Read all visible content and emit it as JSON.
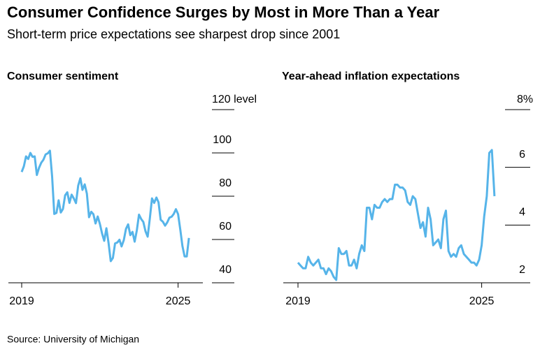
{
  "title": "Consumer Confidence Surges by Most in More Than a Year",
  "subtitle": "Short-term price expectations see sharpest drop since 2001",
  "source": "Source: University of Michigan",
  "chart_data": [
    {
      "type": "line",
      "title": "Consumer sentiment",
      "x": [
        2019.0,
        2019.083,
        2019.167,
        2019.25,
        2019.333,
        2019.417,
        2019.5,
        2019.583,
        2019.667,
        2019.75,
        2019.833,
        2019.917,
        2020.0,
        2020.083,
        2020.167,
        2020.25,
        2020.333,
        2020.417,
        2020.5,
        2020.583,
        2020.667,
        2020.75,
        2020.833,
        2020.917,
        2021.0,
        2021.083,
        2021.167,
        2021.25,
        2021.333,
        2021.417,
        2021.5,
        2021.583,
        2021.667,
        2021.75,
        2021.833,
        2021.917,
        2022.0,
        2022.083,
        2022.167,
        2022.25,
        2022.333,
        2022.417,
        2022.5,
        2022.583,
        2022.667,
        2022.75,
        2022.833,
        2022.917,
        2023.0,
        2023.083,
        2023.167,
        2023.25,
        2023.333,
        2023.417,
        2023.5,
        2023.583,
        2023.667,
        2023.75,
        2023.833,
        2023.917,
        2024.0,
        2024.083,
        2024.167,
        2024.25,
        2024.333,
        2024.417,
        2024.5,
        2024.583,
        2024.667,
        2024.75,
        2024.833,
        2024.917,
        2025.0,
        2025.083,
        2025.167,
        2025.25,
        2025.333,
        2025.417
      ],
      "series": [
        {
          "name": "Consumer sentiment",
          "color": "#56b4e9",
          "values": [
            91.2,
            93.8,
            98.4,
            97.2,
            100.0,
            98.2,
            98.4,
            89.8,
            93.2,
            95.5,
            96.8,
            99.3,
            99.8,
            101.0,
            89.1,
            71.8,
            72.3,
            78.1,
            72.5,
            74.1,
            80.4,
            81.8,
            76.9,
            80.7,
            79.0,
            76.8,
            84.9,
            88.3,
            82.9,
            85.5,
            81.2,
            70.3,
            72.8,
            71.7,
            67.4,
            70.6,
            67.2,
            62.8,
            59.4,
            65.2,
            58.4,
            50.0,
            51.5,
            58.2,
            58.6,
            59.9,
            56.8,
            59.7,
            64.9,
            67.0,
            62.0,
            63.5,
            59.0,
            64.2,
            71.5,
            69.5,
            68.1,
            63.8,
            61.3,
            69.7,
            79.0,
            76.9,
            79.4,
            77.2,
            69.1,
            68.2,
            66.4,
            67.9,
            70.1,
            70.5,
            71.8,
            74.0,
            71.7,
            64.7,
            57.0,
            52.2,
            52.2,
            60.7
          ]
        }
      ],
      "xlim": [
        2018.49,
        2025.95
      ],
      "xticks": [
        2019,
        2025
      ],
      "ylim": [
        40,
        120
      ],
      "yticks": [
        {
          "value": 120,
          "label": "120 level"
        },
        100,
        80,
        60,
        40
      ]
    },
    {
      "type": "line",
      "title": "Year-ahead inflation expectations",
      "x": [
        2019.0,
        2019.083,
        2019.167,
        2019.25,
        2019.333,
        2019.417,
        2019.5,
        2019.583,
        2019.667,
        2019.75,
        2019.833,
        2019.917,
        2020.0,
        2020.083,
        2020.167,
        2020.25,
        2020.333,
        2020.417,
        2020.5,
        2020.583,
        2020.667,
        2020.75,
        2020.833,
        2020.917,
        2021.0,
        2021.083,
        2021.167,
        2021.25,
        2021.333,
        2021.417,
        2021.5,
        2021.583,
        2021.667,
        2021.75,
        2021.833,
        2021.917,
        2022.0,
        2022.083,
        2022.167,
        2022.25,
        2022.333,
        2022.417,
        2022.5,
        2022.583,
        2022.667,
        2022.75,
        2022.833,
        2022.917,
        2023.0,
        2023.083,
        2023.167,
        2023.25,
        2023.333,
        2023.417,
        2023.5,
        2023.583,
        2023.667,
        2023.75,
        2023.833,
        2023.917,
        2024.0,
        2024.083,
        2024.167,
        2024.25,
        2024.333,
        2024.417,
        2024.5,
        2024.583,
        2024.667,
        2024.75,
        2024.833,
        2024.917,
        2025.0,
        2025.083,
        2025.167,
        2025.25,
        2025.333,
        2025.417
      ],
      "series": [
        {
          "name": "Year-ahead inflation expectations",
          "color": "#56b4e9",
          "values": [
            2.7,
            2.6,
            2.5,
            2.5,
            2.9,
            2.7,
            2.6,
            2.7,
            2.8,
            2.5,
            2.5,
            2.3,
            2.5,
            2.4,
            2.2,
            2.1,
            3.2,
            3.0,
            3.0,
            3.1,
            2.6,
            2.6,
            2.8,
            2.5,
            3.0,
            3.3,
            3.1,
            4.6,
            4.6,
            4.2,
            4.7,
            4.6,
            4.6,
            4.8,
            4.9,
            4.8,
            4.9,
            4.9,
            5.4,
            5.4,
            5.3,
            5.3,
            5.2,
            4.8,
            4.7,
            5.0,
            4.9,
            4.4,
            3.9,
            4.1,
            3.6,
            4.6,
            4.2,
            3.3,
            3.4,
            3.5,
            3.2,
            4.2,
            4.5,
            3.1,
            2.9,
            3.0,
            2.9,
            3.2,
            3.3,
            3.0,
            2.9,
            2.8,
            2.7,
            2.7,
            2.6,
            2.8,
            3.3,
            4.3,
            5.0,
            6.5,
            6.6,
            5.0
          ]
        }
      ],
      "xlim": [
        2018.52,
        2026.06
      ],
      "xticks": [
        2019,
        2025
      ],
      "ylim": [
        2,
        8
      ],
      "yticks": [
        {
          "value": 8,
          "label": "8%"
        },
        6,
        4,
        2
      ]
    }
  ]
}
